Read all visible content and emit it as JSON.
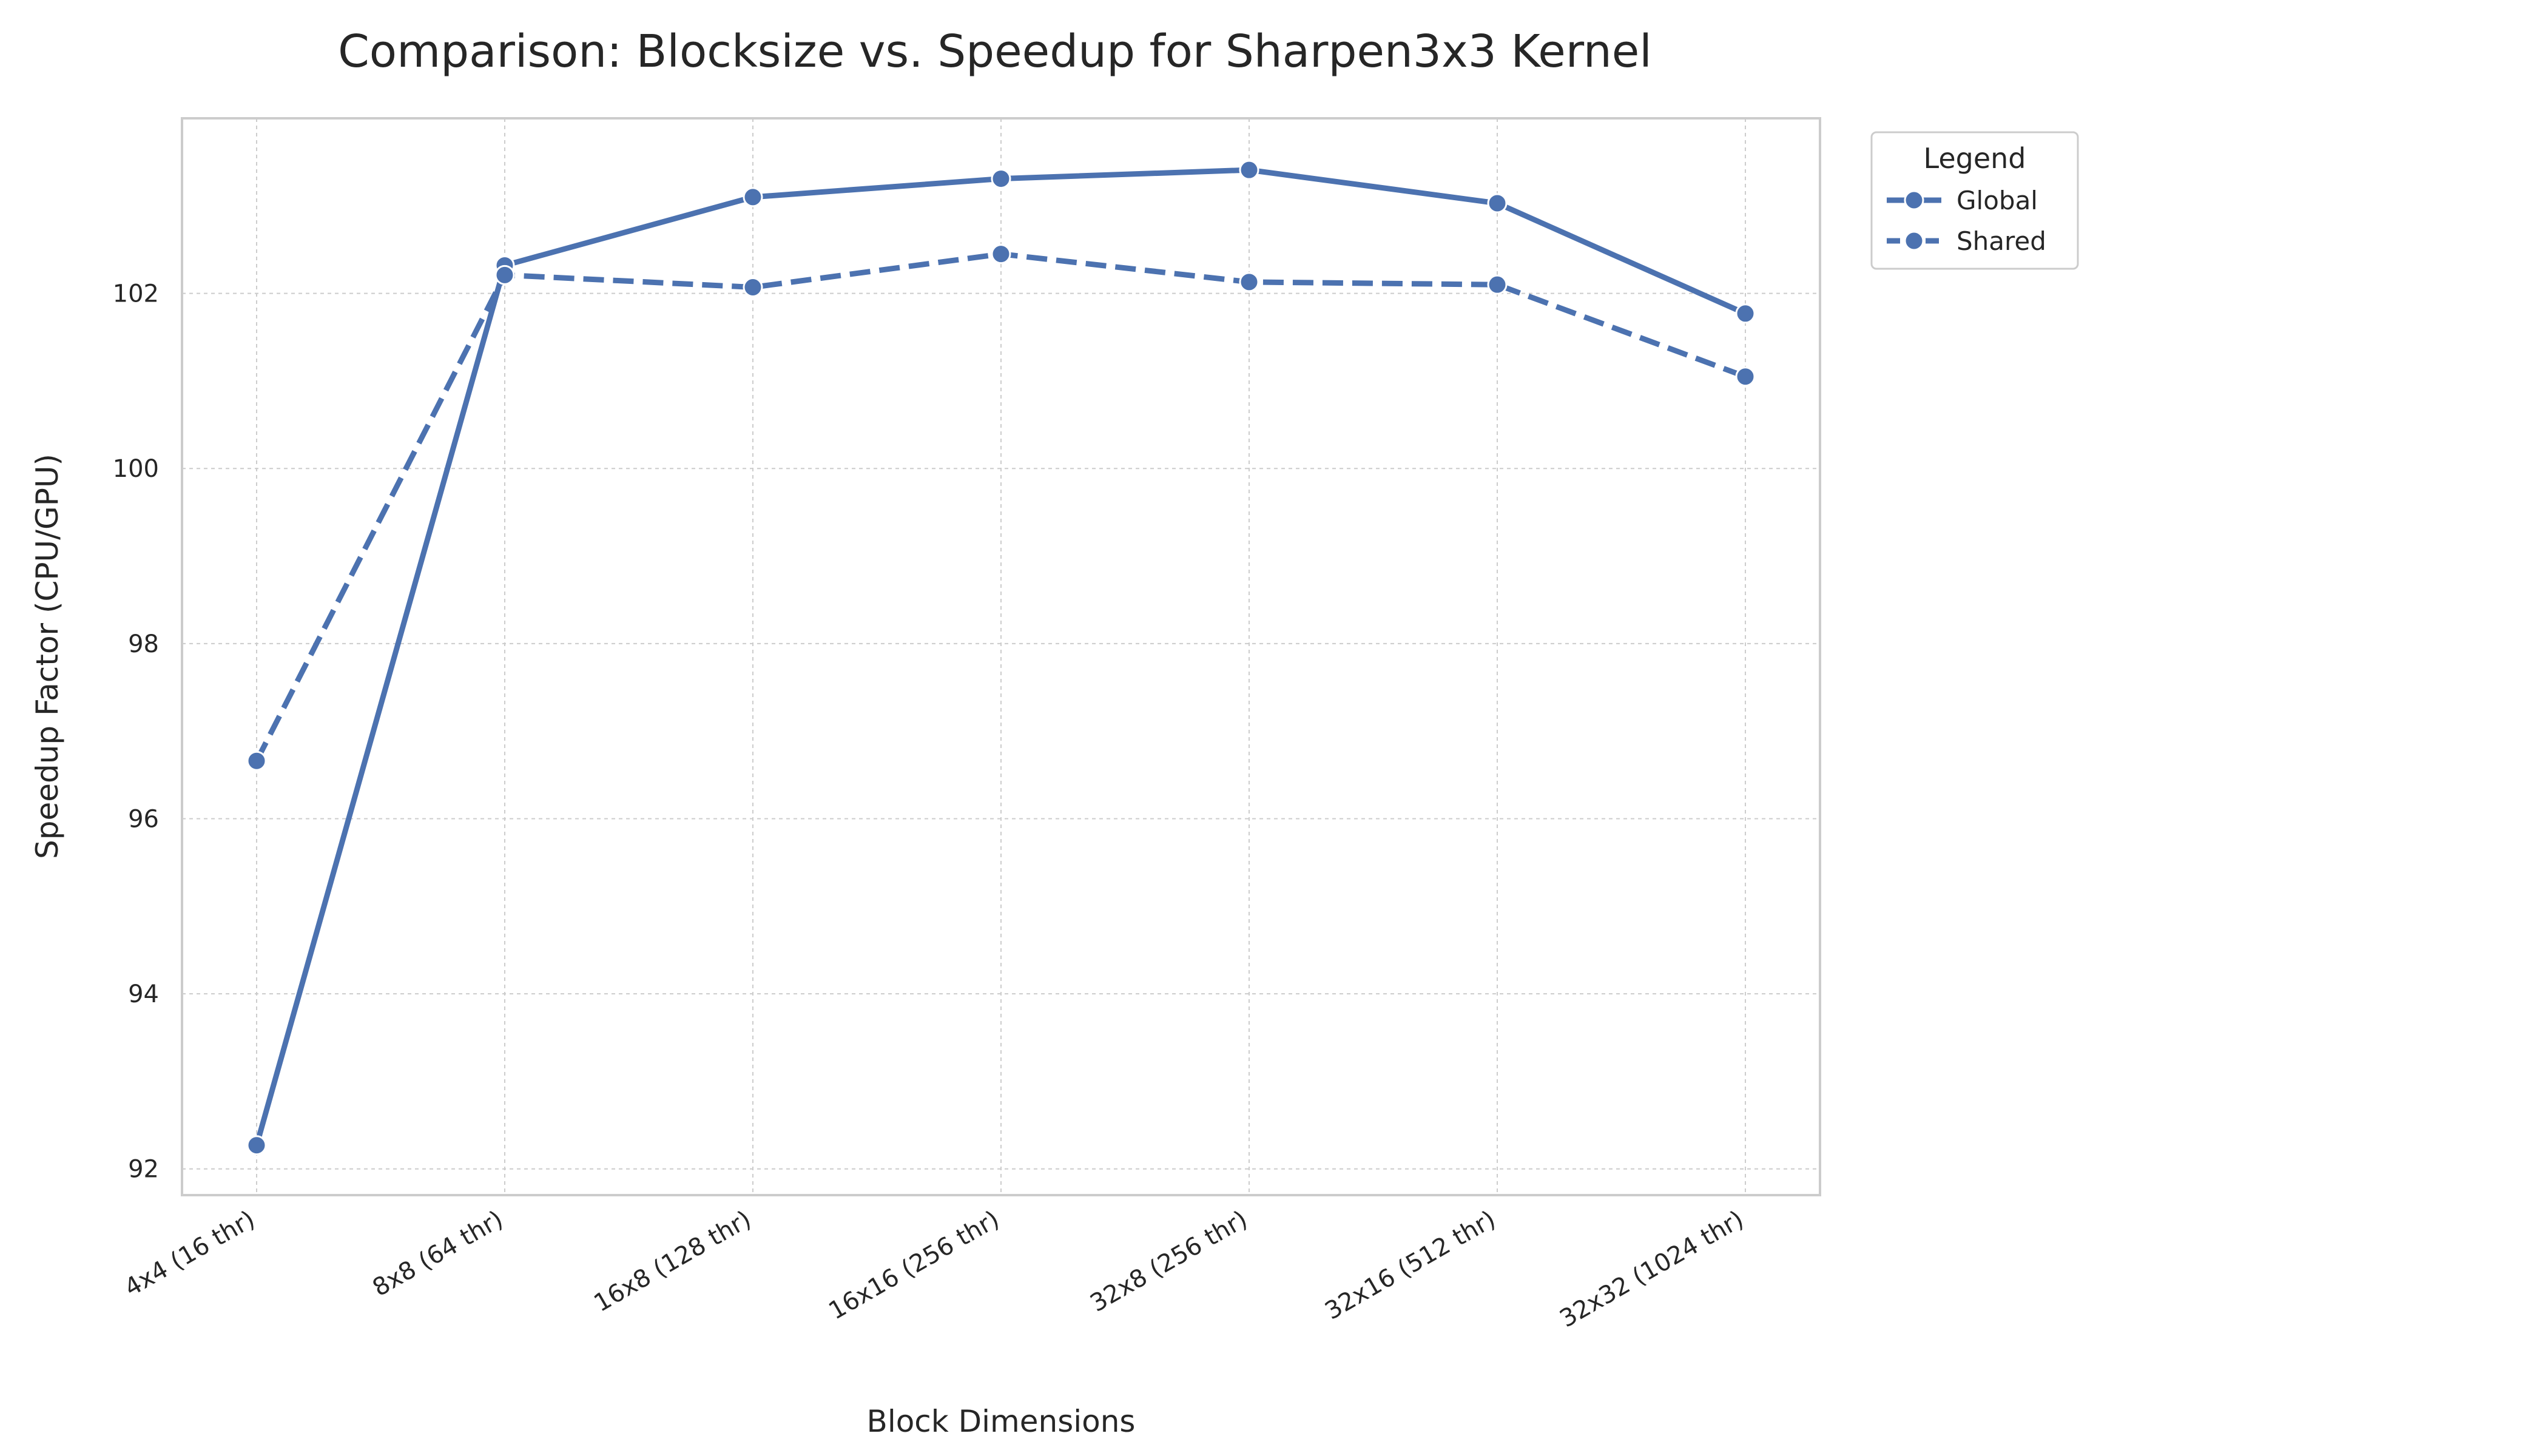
{
  "chart_data": {
    "type": "line",
    "title": "Comparison: Blocksize vs. Speedup for Sharpen3x3 Kernel",
    "xlabel": "Block Dimensions",
    "ylabel": "Speedup Factor (CPU/GPU)",
    "categories": [
      "4x4 (16 thr)",
      "8x8 (64 thr)",
      "16x8 (128 thr)",
      "16x16 (256 thr)",
      "32x8 (256 thr)",
      "32x16 (512 thr)",
      "32x32 (1024 thr)"
    ],
    "yticks": [
      "92",
      "94",
      "96",
      "98",
      "100",
      "102"
    ],
    "ylim": [
      91.7,
      104.0
    ],
    "grid": true,
    "legend_title": "Legend",
    "legend_position": "outside-top-right",
    "series": [
      {
        "name": "Global",
        "values": [
          92.27,
          102.32,
          103.1,
          103.31,
          103.41,
          103.03,
          101.77
        ],
        "color": "#4c72b0",
        "linestyle": "solid"
      },
      {
        "name": "Shared",
        "values": [
          96.66,
          102.21,
          102.07,
          102.45,
          102.13,
          102.1,
          101.05
        ],
        "color": "#4c72b0",
        "linestyle": "dashed"
      }
    ]
  }
}
